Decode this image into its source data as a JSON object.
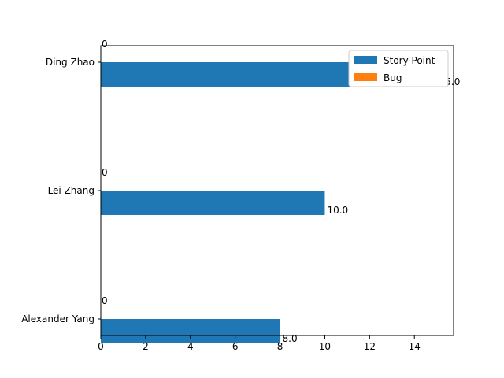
{
  "chart_data": {
    "type": "bar",
    "orientation": "horizontal",
    "categories": [
      "Alexander Yang",
      "Lei Zhang",
      "Ding Zhao"
    ],
    "series": [
      {
        "name": "Story Point",
        "color": "#1f77b4",
        "values": [
          8.0,
          10.0,
          15.0
        ],
        "labels": [
          "8.0",
          "10.0",
          "15.0"
        ]
      },
      {
        "name": "Bug",
        "color": "#ff7f0e",
        "values": [
          0,
          0,
          0
        ],
        "labels": [
          "0",
          "0",
          "0"
        ]
      }
    ],
    "xlim": [
      0,
      15.75
    ],
    "xticks": [
      "0",
      "2",
      "4",
      "6",
      "8",
      "10",
      "12",
      "14"
    ],
    "xlabel": "",
    "ylabel": "",
    "title": "",
    "grid": false,
    "legend_position": "top-right"
  }
}
